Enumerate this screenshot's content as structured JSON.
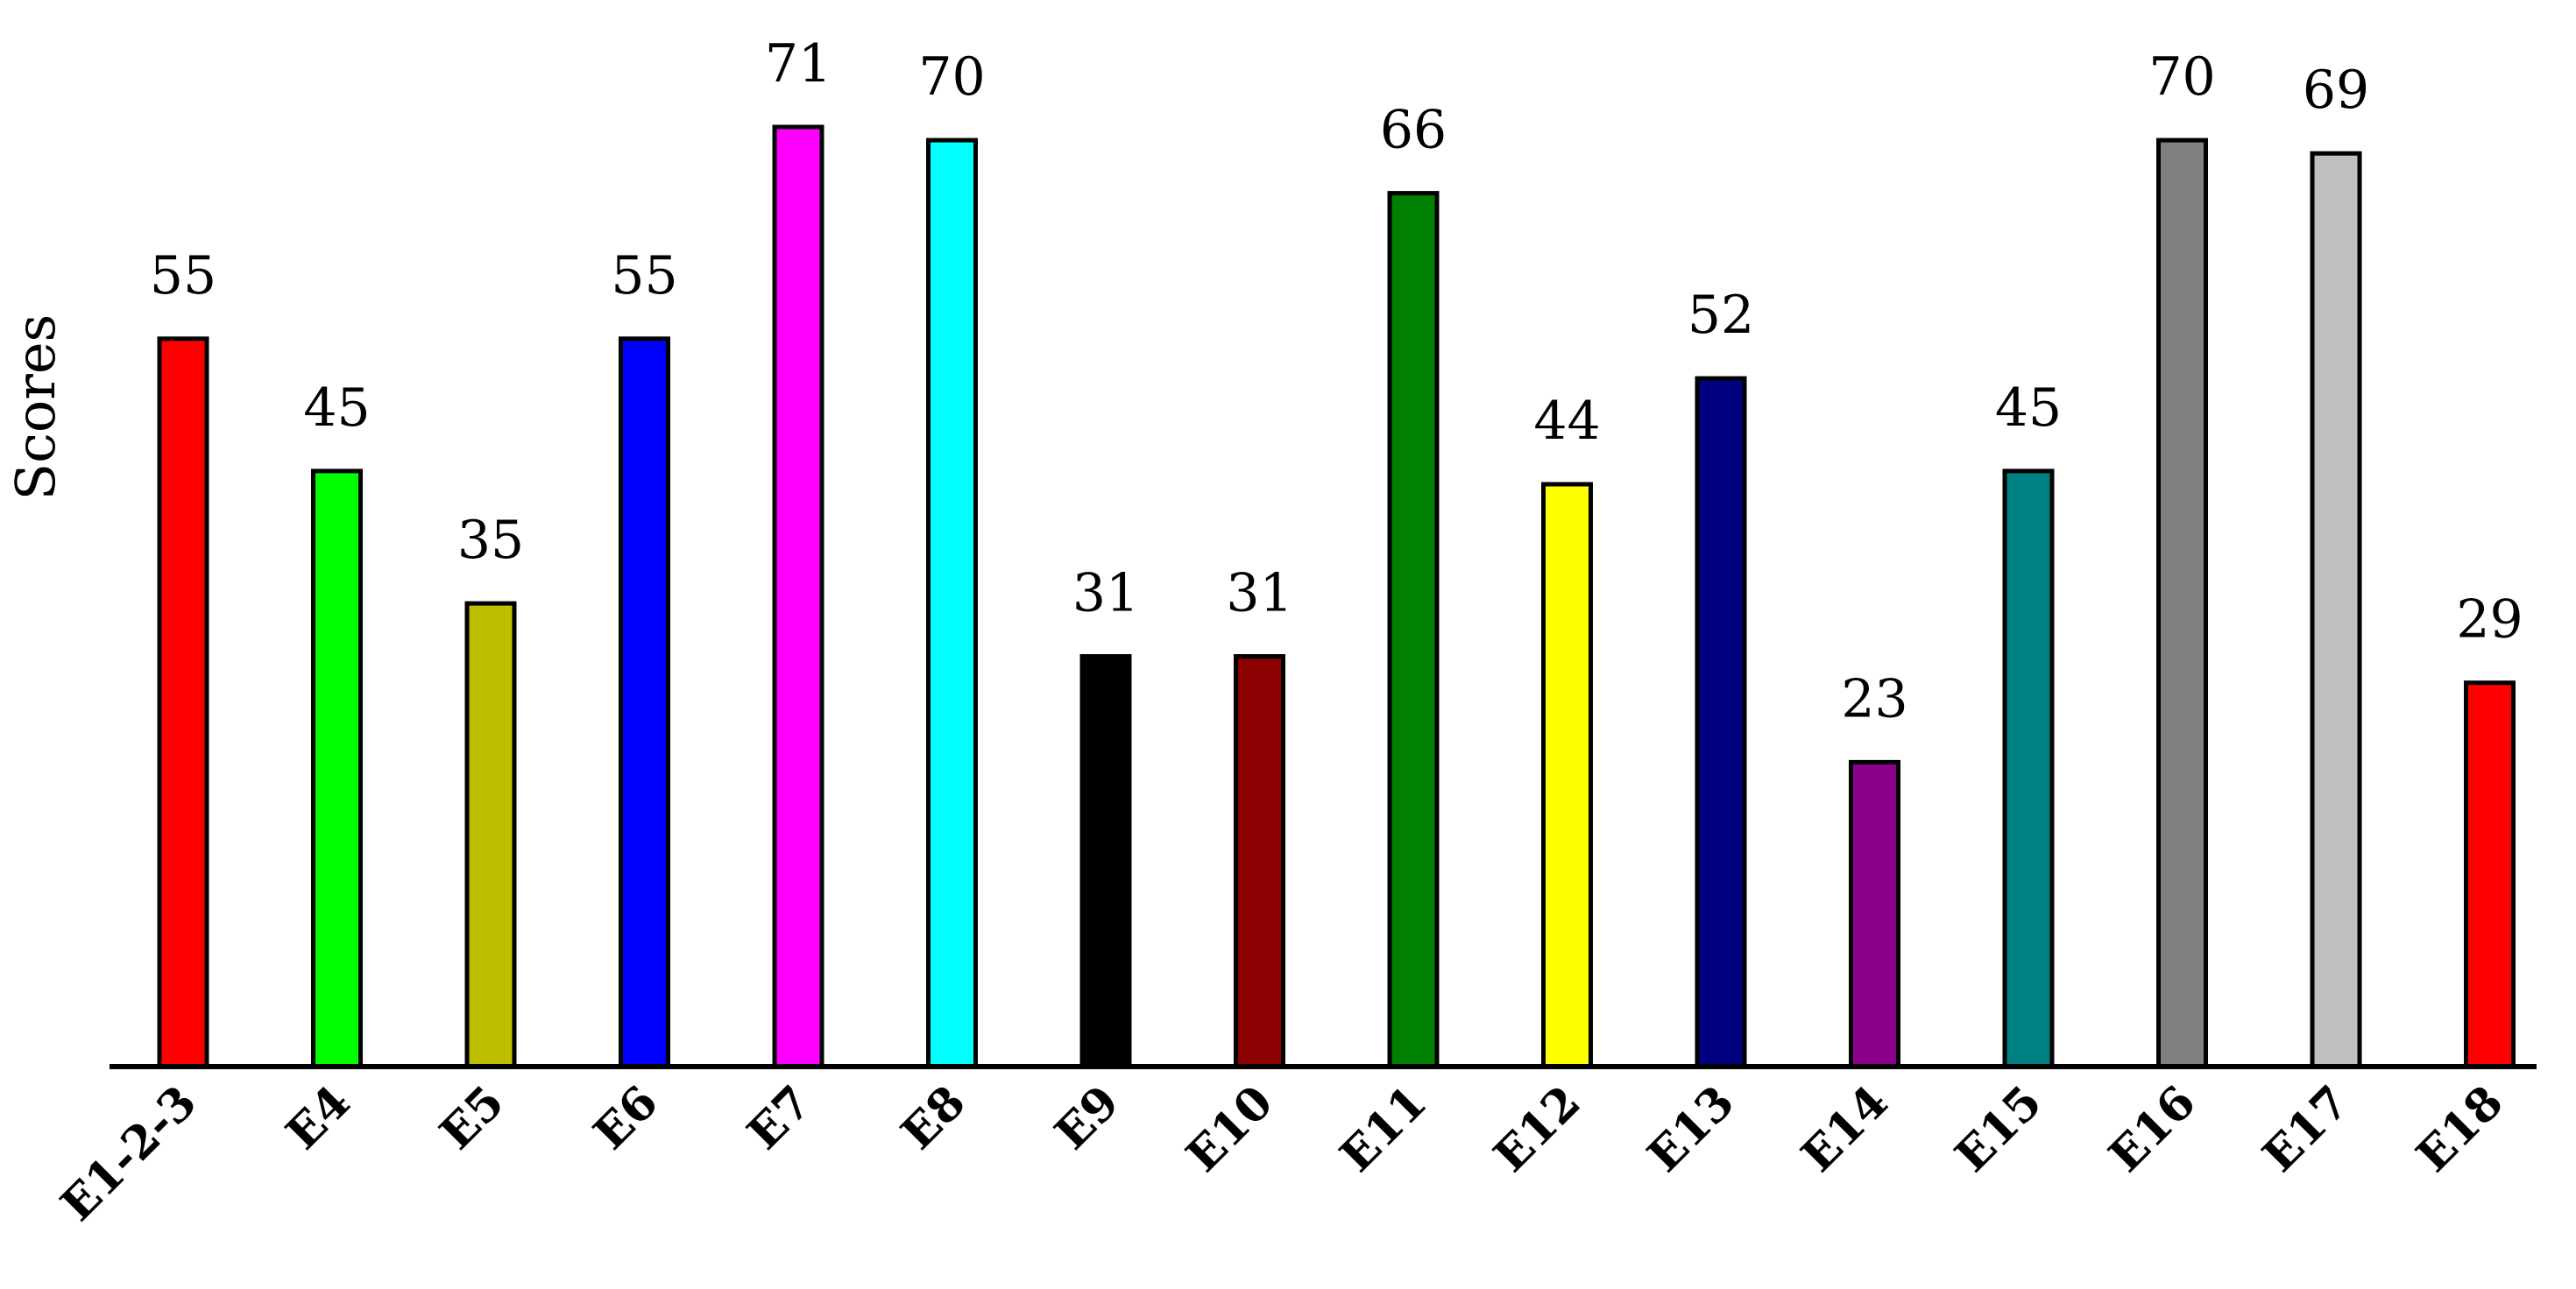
{
  "chart_data": {
    "type": "bar",
    "title": "",
    "xlabel": "",
    "ylabel": "Scores",
    "ylim": [
      0,
      71
    ],
    "grid": false,
    "legend": "none",
    "categories": [
      "E1-2-3",
      "E4",
      "E5",
      "E6",
      "E7",
      "E8",
      "E9",
      "E10",
      "E11",
      "E12",
      "E13",
      "E14",
      "E15",
      "E16",
      "E17",
      "E18"
    ],
    "values": [
      55,
      45,
      35,
      55,
      71,
      70,
      31,
      31,
      66,
      44,
      52,
      23,
      45,
      70,
      69,
      29
    ],
    "data_labels": [
      "55",
      "45",
      "35",
      "55",
      "71",
      "70",
      "31",
      "31",
      "66",
      "44",
      "52",
      "23",
      "45",
      "70",
      "69",
      "29"
    ],
    "colors": [
      "#ff0000",
      "#00ff00",
      "#bfbf00",
      "#0000ff",
      "#ff00ff",
      "#00ffff",
      "#000000",
      "#8b0000",
      "#008000",
      "#ffff00",
      "#000080",
      "#8b008b",
      "#008080",
      "#808080",
      "#c0c0c0",
      "#ff0000"
    ]
  }
}
